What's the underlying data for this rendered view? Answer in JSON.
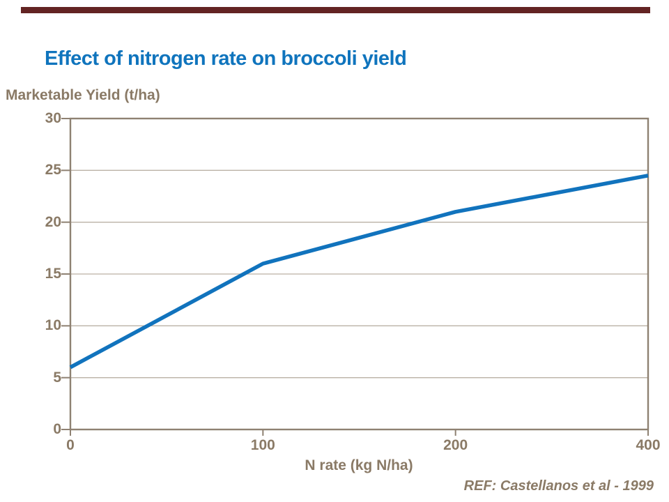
{
  "page": {
    "title": "Effect of nitrogen rate on broccoli yield",
    "ref_note": "REF: Castellanos et al - 1999"
  },
  "colors": {
    "title_blue": "#0f74bd",
    "line_blue": "#1173bd",
    "text_brown": "#8a7a66",
    "axis_brown": "#8e8172",
    "gridline_brown": "#bab1a5",
    "top_bar_maroon": "#632423",
    "background": "#ffffff"
  },
  "chart_data": {
    "type": "line",
    "title": "Effect of nitrogen rate on broccoli yield",
    "xlabel": "N rate (kg N/ha)",
    "ylabel": "Marketable Yield (t/ha)",
    "categories": [
      0,
      100,
      200,
      400
    ],
    "x_tick_labels": [
      "0",
      "100",
      "200",
      "400"
    ],
    "x_axis_note": "category axis - ticks equally spaced although values jump 200 to 400",
    "series": [
      {
        "name": "Marketable yield",
        "values": [
          6,
          16,
          21,
          24.5
        ]
      }
    ],
    "ylim": [
      0,
      30
    ],
    "yticks": [
      0,
      5,
      10,
      15,
      20,
      25,
      30
    ],
    "grid": "horizontal gridlines at each y tick, plot framed on all four sides",
    "legend": "none",
    "annotation": "REF: Castellanos et al - 1999"
  }
}
